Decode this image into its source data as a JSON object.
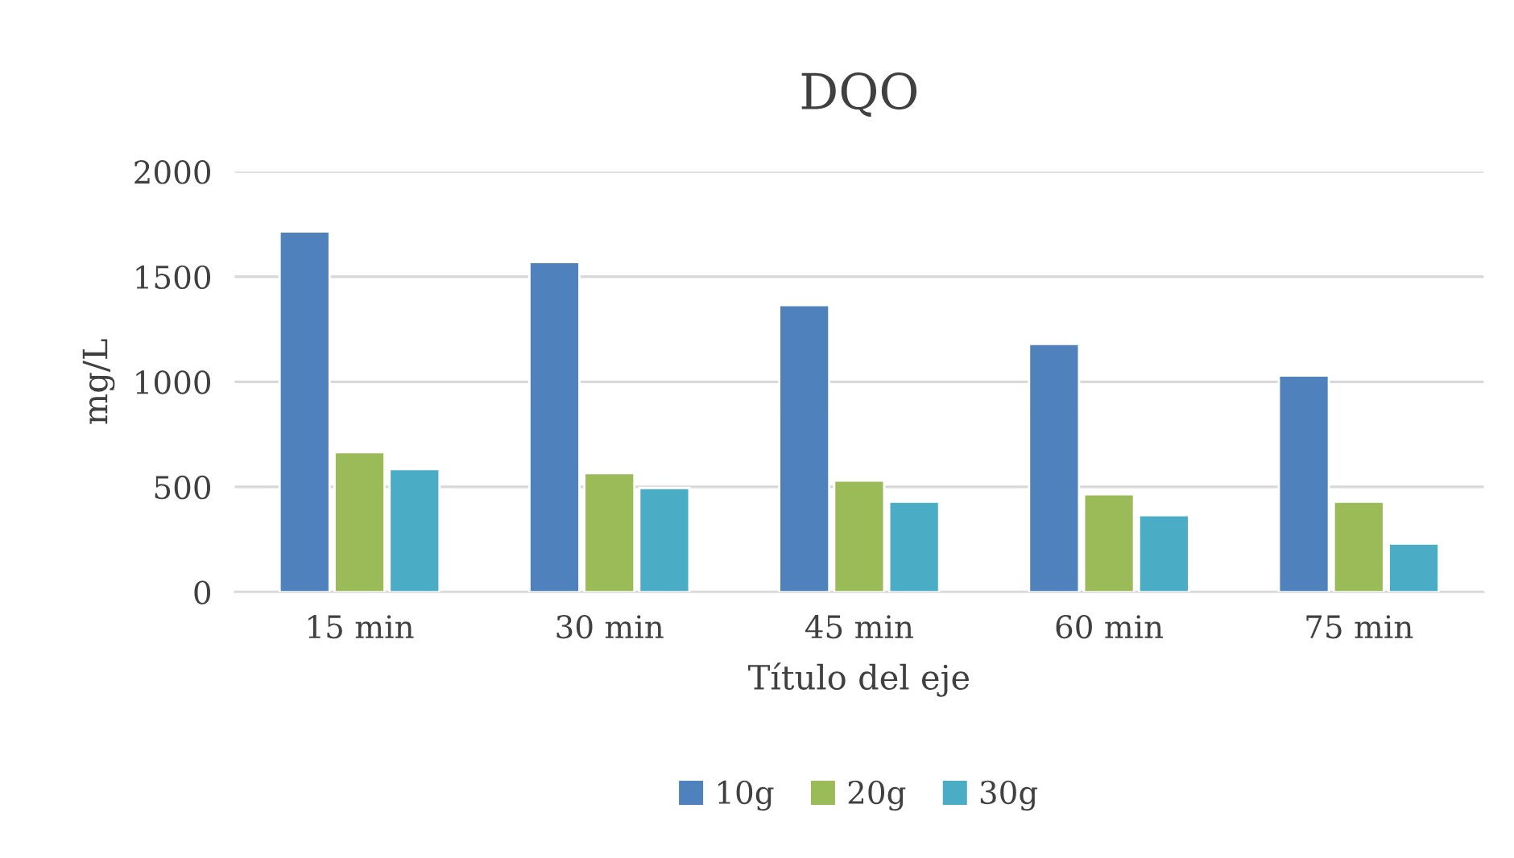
{
  "chart_data": {
    "type": "bar",
    "title": "DQO",
    "xlabel": "Título del eje",
    "ylabel": "mg/L",
    "categories": [
      "15 min",
      "30 min",
      "45 min",
      "60 min",
      "75 min"
    ],
    "series": [
      {
        "name": "10g",
        "color": "#4f81bd",
        "values": [
          1715,
          1570,
          1365,
          1180,
          1030
        ]
      },
      {
        "name": "20g",
        "color": "#9bbb59",
        "values": [
          665,
          565,
          530,
          465,
          430
        ]
      },
      {
        "name": "30g",
        "color": "#4bacc6",
        "values": [
          585,
          495,
          430,
          365,
          230
        ]
      }
    ],
    "ylim": [
      0,
      2000
    ],
    "yticks": [
      0,
      500,
      1000,
      1500,
      2000
    ],
    "grid": "y",
    "legend": "bottom"
  }
}
